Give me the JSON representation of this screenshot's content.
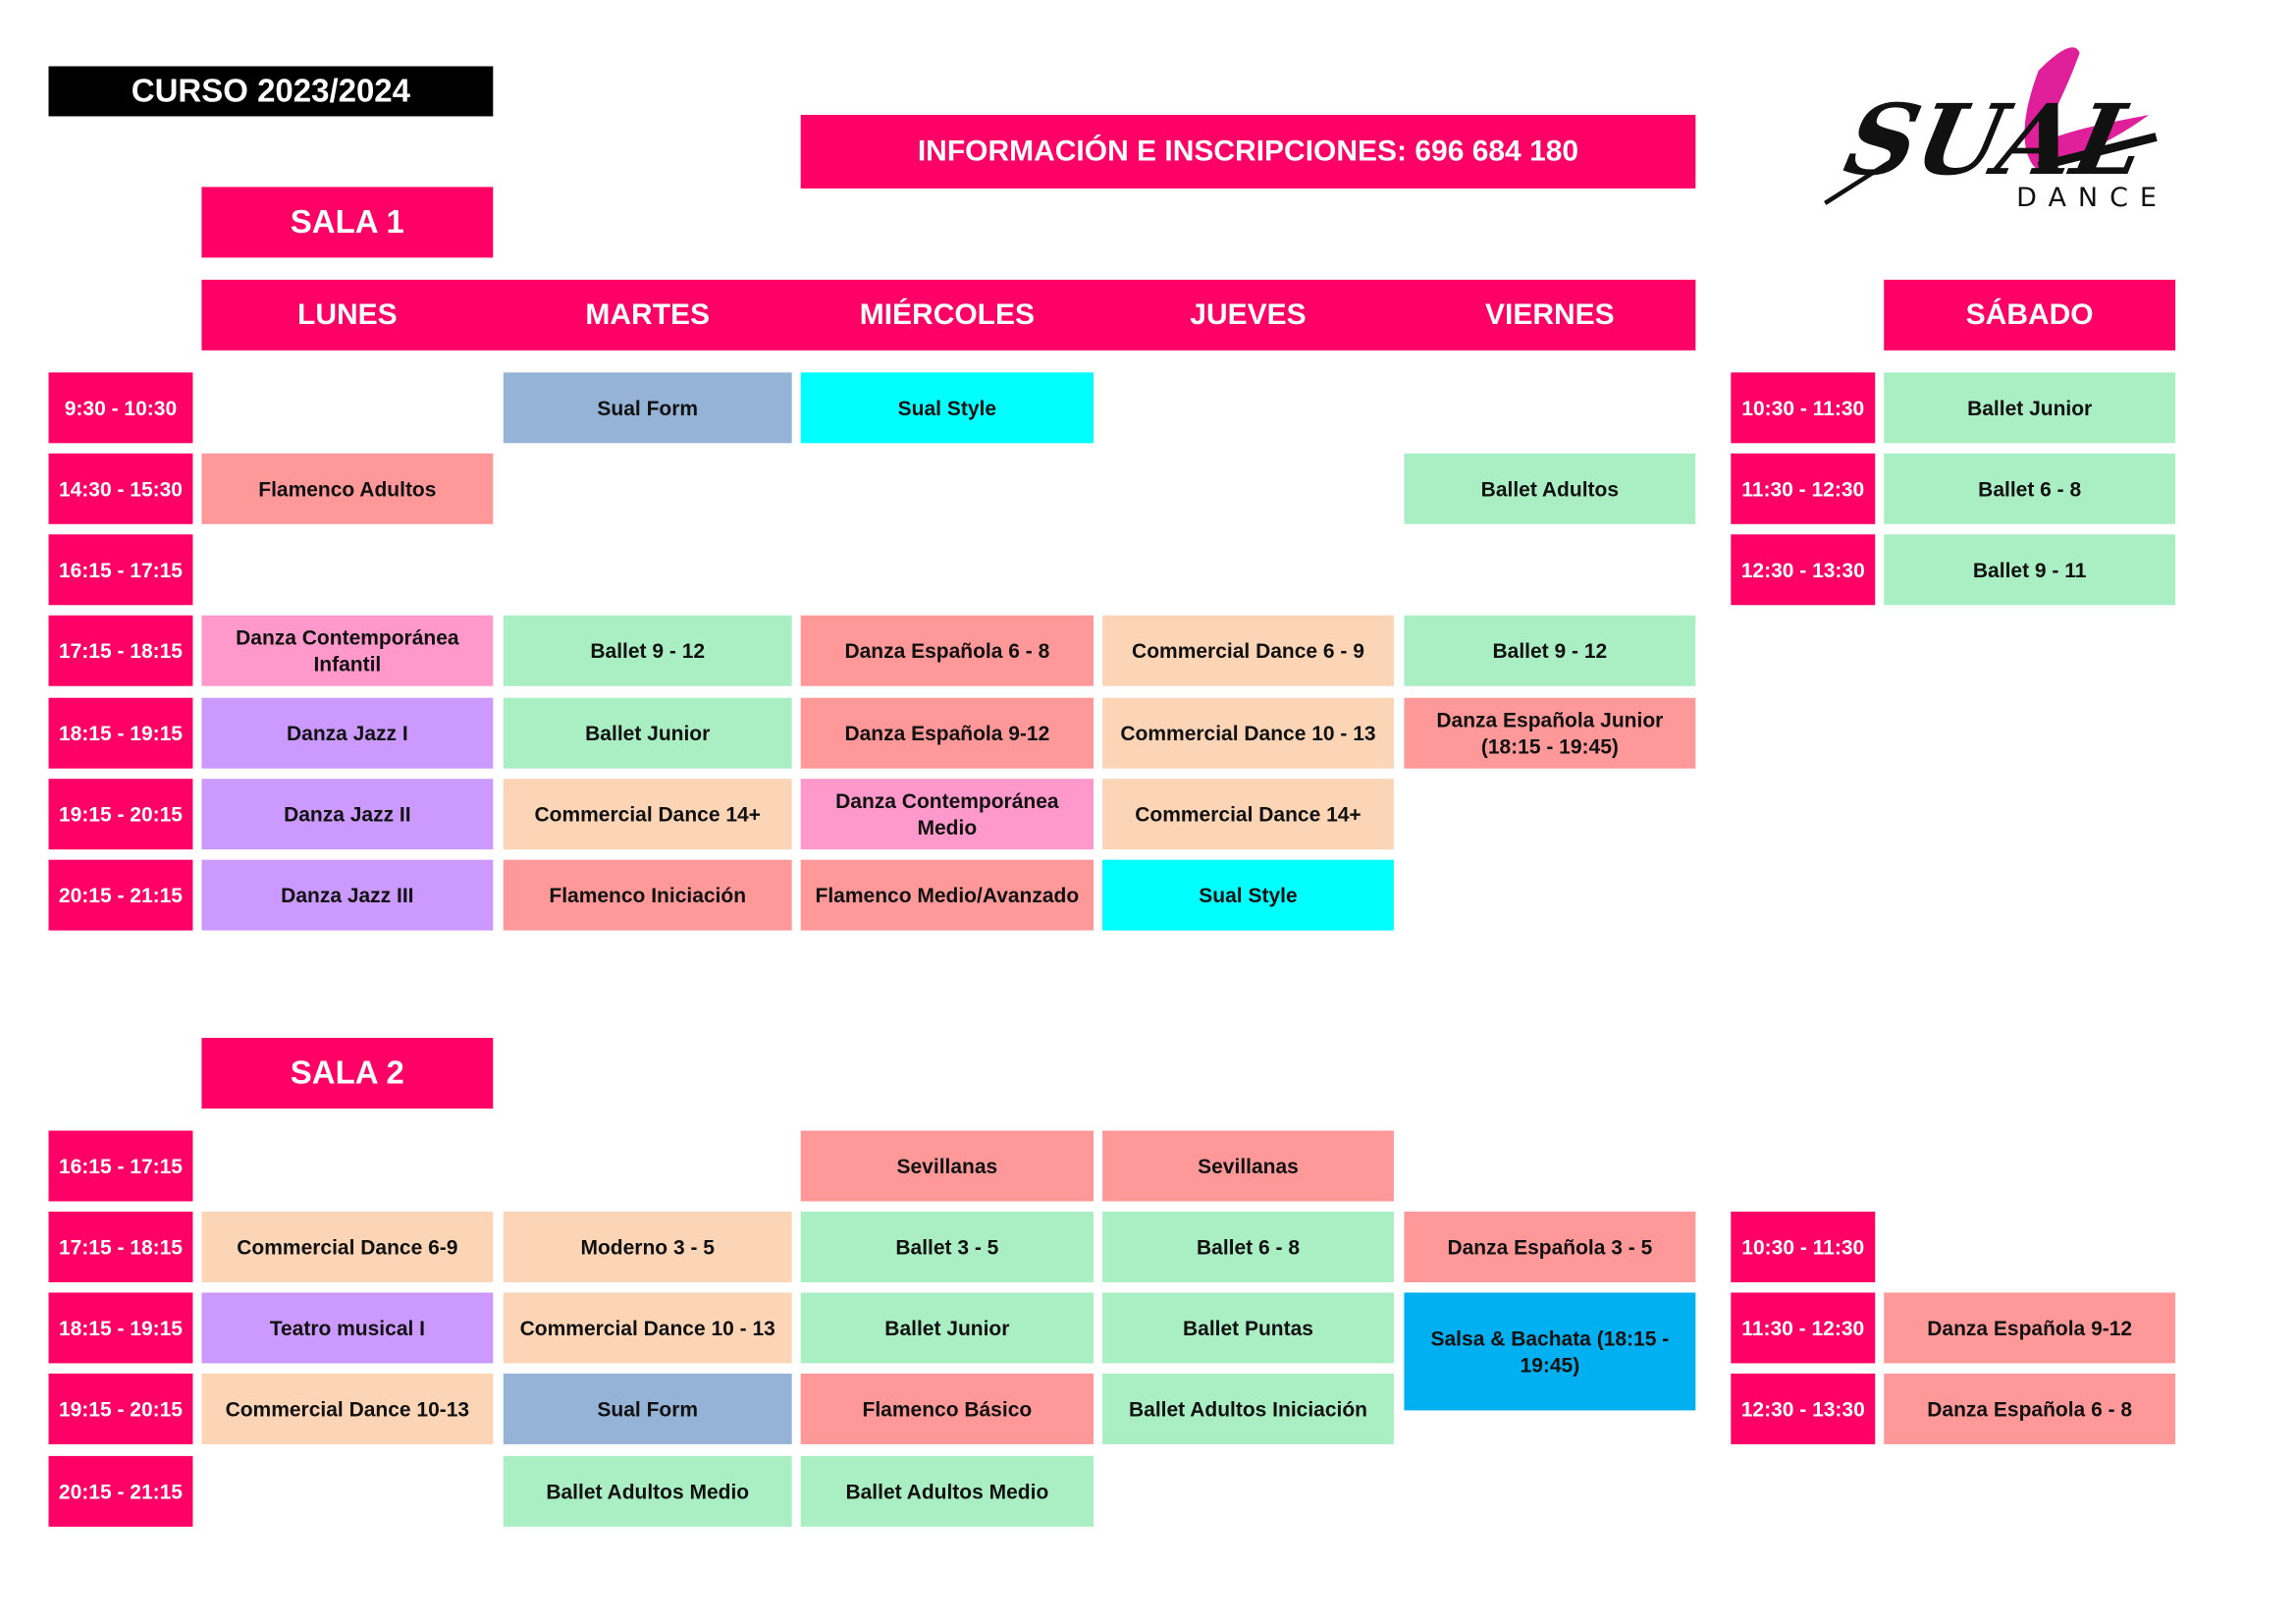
{
  "course": "CURSO 2023/2024",
  "info": "INFORMACIÓN E INSCRIPCIONES:  696 684 180",
  "logo": {
    "text": "SUAL",
    "subtext": "DANCE"
  },
  "colors": {
    "accent": "#ff0066",
    "blue": "#95b3d7",
    "cyan": "#00ffff",
    "salmon": "#ff9999",
    "green": "#aaefc4",
    "rose": "#ff99cc",
    "purple": "#cc99ff",
    "peach": "#fbd5b5",
    "sky": "#00b0f0"
  },
  "days": [
    "LUNES",
    "MARTES",
    "MIÉRCOLES",
    "JUEVES",
    "VIERNES"
  ],
  "saturday": "SÁBADO",
  "sala1": {
    "title": "SALA 1",
    "rows": [
      {
        "time": "9:30 - 10:30",
        "cells": [
          null,
          {
            "t": "Sual Form",
            "c": "blue"
          },
          {
            "t": "Sual Style",
            "c": "cyan"
          },
          null,
          null
        ],
        "sat_time": "10:30 - 11:30",
        "sat": {
          "t": "Ballet Junior",
          "c": "green"
        }
      },
      {
        "time": "14:30 - 15:30",
        "cells": [
          {
            "t": "Flamenco Adultos",
            "c": "salmon"
          },
          null,
          null,
          null,
          {
            "t": "Ballet Adultos",
            "c": "green"
          }
        ],
        "sat_time": "11:30 - 12:30",
        "sat": {
          "t": "Ballet 6 - 8",
          "c": "green"
        }
      },
      {
        "time": "16:15 - 17:15",
        "cells": [
          null,
          null,
          null,
          null,
          null
        ],
        "sat_time": "12:30 - 13:30",
        "sat": {
          "t": "Ballet 9 - 11",
          "c": "green"
        }
      },
      {
        "time": "17:15 - 18:15",
        "cells": [
          {
            "t": "Danza Contemporánea Infantil",
            "c": "rose"
          },
          {
            "t": "Ballet 9 - 12",
            "c": "green"
          },
          {
            "t": "Danza Española 6 - 8",
            "c": "salmon"
          },
          {
            "t": "Commercial Dance 6 - 9",
            "c": "peach"
          },
          {
            "t": "Ballet 9 - 12",
            "c": "green"
          }
        ]
      },
      {
        "time": "18:15 - 19:15",
        "cells": [
          {
            "t": "Danza Jazz I",
            "c": "purple"
          },
          {
            "t": "Ballet Junior",
            "c": "green"
          },
          {
            "t": "Danza Española 9-12",
            "c": "salmon"
          },
          {
            "t": "Commercial Dance  10 - 13",
            "c": "peach"
          },
          {
            "t": "Danza Española Junior (18:15 - 19:45)",
            "c": "salmon"
          }
        ]
      },
      {
        "time": "19:15 - 20:15",
        "cells": [
          {
            "t": "Danza Jazz II",
            "c": "purple"
          },
          {
            "t": "Commercial Dance  14+",
            "c": "peach"
          },
          {
            "t": "Danza Contemporánea Medio",
            "c": "rose"
          },
          {
            "t": "Commercial Dance  14+",
            "c": "peach"
          },
          null
        ]
      },
      {
        "time": "20:15 - 21:15",
        "cells": [
          {
            "t": "Danza Jazz III",
            "c": "purple"
          },
          {
            "t": "Flamenco Iniciación",
            "c": "salmon"
          },
          {
            "t": "Flamenco Medio/Avanzado",
            "c": "salmon"
          },
          {
            "t": "Sual Style",
            "c": "cyan"
          },
          null
        ]
      }
    ]
  },
  "sala2": {
    "title": "SALA 2",
    "rows": [
      {
        "time": "16:15 - 17:15",
        "cells": [
          null,
          null,
          {
            "t": "Sevillanas",
            "c": "salmon"
          },
          {
            "t": "Sevillanas",
            "c": "salmon"
          },
          null
        ]
      },
      {
        "time": "17:15 - 18:15",
        "cells": [
          {
            "t": "Commercial Dance 6-9",
            "c": "peach"
          },
          {
            "t": "Moderno 3 - 5",
            "c": "peach"
          },
          {
            "t": "Ballet 3 - 5",
            "c": "green"
          },
          {
            "t": "Ballet 6 - 8",
            "c": "green"
          },
          {
            "t": "Danza Española 3 - 5",
            "c": "salmon"
          }
        ],
        "sat_time": "10:30 - 11:30"
      },
      {
        "time": "18:15 - 19:15",
        "cells": [
          {
            "t": "Teatro musical I",
            "c": "purple"
          },
          {
            "t": "Commercial Dance 10 - 13",
            "c": "peach"
          },
          {
            "t": "Ballet Junior",
            "c": "green"
          },
          {
            "t": "Ballet Puntas",
            "c": "green"
          },
          {
            "t": "Salsa & Bachata (18:15 - 19:45)",
            "c": "sky",
            "tall": true
          }
        ],
        "sat_time": "11:30 - 12:30",
        "sat": {
          "t": "Danza Española 9-12",
          "c": "salmon"
        }
      },
      {
        "time": "19:15 - 20:15",
        "cells": [
          {
            "t": "Commercial Dance 10-13",
            "c": "peach"
          },
          {
            "t": "Sual Form",
            "c": "blue"
          },
          {
            "t": "Flamenco Básico",
            "c": "salmon"
          },
          {
            "t": "Ballet Adultos Iniciación",
            "c": "green"
          },
          null
        ],
        "sat_time": "12:30 - 13:30",
        "sat": {
          "t": "Danza Española 6 - 8",
          "c": "salmon"
        }
      },
      {
        "time": "20:15 - 21:15",
        "cells": [
          null,
          {
            "t": "Ballet Adultos Medio",
            "c": "green"
          },
          {
            "t": "Ballet Adultos Medio",
            "c": "green"
          },
          null,
          null
        ]
      }
    ]
  }
}
